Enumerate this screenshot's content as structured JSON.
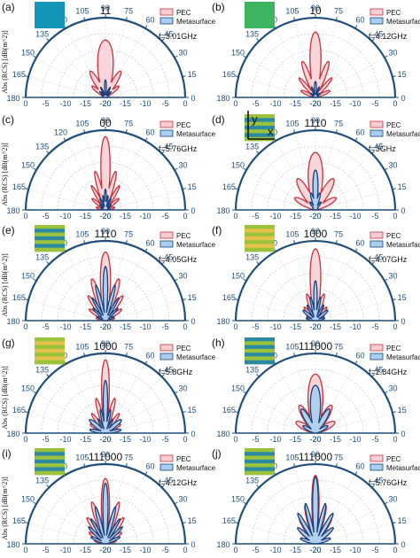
{
  "figure": {
    "y_axis_label": "Abs (RCS) [dB(m^2)]",
    "legend_labels": [
      "PEC",
      "Metasurface"
    ],
    "colors": {
      "axis": "#1f4f7a",
      "pec_stroke": "#c8323c",
      "pec_fill": "#f7cfd3",
      "meta_stroke": "#1d3f7a",
      "meta_fill": "#a8cff0",
      "sq_blue": "#1596b8",
      "sq_green": "#3cb460",
      "stripe_green": "#9bc23c",
      "stripe_yellow": "#e5c34a",
      "stripe_teal": "#2b8aa0"
    }
  },
  "chart_data": [
    {
      "type": "polar",
      "panel": "(a)",
      "code": "11",
      "freq": "f=3.01GHz",
      "swatch": "blue-square",
      "r_ticks": [
        -20,
        -15,
        -10,
        -5,
        0
      ],
      "theta_ticks": [
        0,
        15,
        30,
        45,
        60,
        75,
        90,
        105,
        120,
        135,
        150,
        165,
        180
      ],
      "series": [
        {
          "name": "PEC",
          "lobes": [
            [
              90,
              0.72,
              13
            ],
            [
              60,
              0.38,
              8
            ],
            [
              120,
              0.38,
              8
            ],
            [
              40,
              0.22,
              8
            ],
            [
              140,
              0.22,
              8
            ]
          ]
        },
        {
          "name": "Metasurface",
          "lobes": [
            [
              90,
              0.22,
              5
            ],
            [
              65,
              0.14,
              5
            ],
            [
              115,
              0.14,
              5
            ],
            [
              45,
              0.1,
              6
            ],
            [
              135,
              0.1,
              6
            ]
          ]
        }
      ]
    },
    {
      "type": "polar",
      "panel": "(b)",
      "code": "10",
      "freq": "f=4.12GHz",
      "swatch": "green-square",
      "r_ticks": [
        -20,
        -15,
        -10,
        -5,
        0
      ],
      "theta_ticks": [
        0,
        15,
        30,
        45,
        60,
        75,
        90,
        105,
        120,
        135,
        150,
        165,
        180
      ],
      "series": [
        {
          "name": "PEC",
          "lobes": [
            [
              90,
              0.82,
              8
            ],
            [
              70,
              0.48,
              6
            ],
            [
              110,
              0.48,
              6
            ],
            [
              50,
              0.32,
              6
            ],
            [
              130,
              0.32,
              6
            ],
            [
              25,
              0.2,
              8
            ],
            [
              155,
              0.2,
              8
            ]
          ]
        },
        {
          "name": "Metasurface",
          "lobes": [
            [
              90,
              0.2,
              6
            ],
            [
              70,
              0.14,
              5
            ],
            [
              110,
              0.14,
              5
            ],
            [
              40,
              0.08,
              8
            ],
            [
              140,
              0.08,
              8
            ]
          ]
        }
      ]
    },
    {
      "type": "polar",
      "panel": "(c)",
      "code": "00",
      "freq": "f=5.76GHz",
      "swatch": "",
      "r_ticks": [
        -20,
        -15,
        -10,
        -5,
        0
      ],
      "theta_ticks": [
        0,
        15,
        30,
        45,
        60,
        75,
        90,
        105,
        120,
        135,
        150,
        165,
        180
      ],
      "series": [
        {
          "name": "PEC",
          "lobes": [
            [
              90,
              0.92,
              6
            ],
            [
              75,
              0.5,
              5
            ],
            [
              105,
              0.5,
              5
            ],
            [
              60,
              0.35,
              5
            ],
            [
              120,
              0.35,
              5
            ],
            [
              40,
              0.22,
              7
            ],
            [
              140,
              0.22,
              7
            ],
            [
              15,
              0.12,
              9
            ],
            [
              165,
              0.12,
              9
            ]
          ]
        },
        {
          "name": "Metasurface",
          "lobes": [
            [
              90,
              0.26,
              4
            ],
            [
              80,
              0.18,
              4
            ],
            [
              100,
              0.18,
              4
            ],
            [
              65,
              0.16,
              5
            ],
            [
              115,
              0.16,
              5
            ],
            [
              45,
              0.1,
              7
            ],
            [
              135,
              0.1,
              7
            ],
            [
              15,
              0.06,
              9
            ],
            [
              165,
              0.06,
              9
            ]
          ]
        }
      ]
    },
    {
      "type": "polar",
      "panel": "(d)",
      "code": "1110",
      "freq": "f=3GHz",
      "swatch": "stripes-teal-axes",
      "r_ticks": [
        -20,
        -15,
        -10,
        -5,
        0
      ],
      "theta_ticks": [
        0,
        15,
        30,
        45,
        60,
        75,
        90,
        105,
        120,
        135,
        150,
        165,
        180
      ],
      "series": [
        {
          "name": "PEC",
          "lobes": [
            [
              90,
              0.72,
              12
            ],
            [
              60,
              0.45,
              10
            ],
            [
              120,
              0.45,
              10
            ],
            [
              30,
              0.3,
              10
            ],
            [
              150,
              0.3,
              10
            ]
          ]
        },
        {
          "name": "Metasurface",
          "lobes": [
            [
              90,
              0.5,
              6
            ],
            [
              75,
              0.22,
              6
            ],
            [
              105,
              0.22,
              6
            ],
            [
              55,
              0.12,
              8
            ],
            [
              125,
              0.12,
              8
            ]
          ]
        }
      ]
    },
    {
      "type": "polar",
      "panel": "(e)",
      "code": "1110",
      "freq": "f=4.05GHz",
      "swatch": "stripes-green-teal",
      "r_ticks": [
        -20,
        -15,
        -10,
        -5,
        0
      ],
      "theta_ticks": [
        0,
        15,
        30,
        45,
        60,
        75,
        90,
        105,
        120,
        135,
        150,
        165,
        180
      ],
      "series": [
        {
          "name": "PEC",
          "lobes": [
            [
              90,
              0.86,
              7
            ],
            [
              72,
              0.55,
              6
            ],
            [
              108,
              0.55,
              6
            ],
            [
              55,
              0.38,
              6
            ],
            [
              125,
              0.38,
              6
            ],
            [
              35,
              0.25,
              7
            ],
            [
              145,
              0.25,
              7
            ],
            [
              15,
              0.12,
              8
            ],
            [
              165,
              0.12,
              8
            ]
          ]
        },
        {
          "name": "Metasurface",
          "lobes": [
            [
              90,
              0.68,
              4
            ],
            [
              75,
              0.46,
              4
            ],
            [
              105,
              0.46,
              4
            ],
            [
              60,
              0.33,
              4
            ],
            [
              120,
              0.33,
              4
            ],
            [
              45,
              0.22,
              5
            ],
            [
              135,
              0.22,
              5
            ],
            [
              25,
              0.12,
              7
            ],
            [
              155,
              0.12,
              7
            ]
          ]
        }
      ]
    },
    {
      "type": "polar",
      "panel": "(f)",
      "code": "1000",
      "freq": "f=4.07GHz",
      "swatch": "stripes-green-yellow",
      "r_ticks": [
        -20,
        -15,
        -10,
        -5,
        0
      ],
      "theta_ticks": [
        0,
        15,
        30,
        45,
        60,
        75,
        90,
        105,
        120,
        135,
        150,
        165,
        180
      ],
      "series": [
        {
          "name": "PEC",
          "lobes": [
            [
              90,
              0.9,
              7
            ],
            [
              72,
              0.35,
              6
            ],
            [
              108,
              0.35,
              6
            ],
            [
              50,
              0.22,
              7
            ],
            [
              130,
              0.22,
              7
            ],
            [
              25,
              0.12,
              9
            ],
            [
              155,
              0.12,
              9
            ]
          ]
        },
        {
          "name": "Metasurface",
          "lobes": [
            [
              90,
              0.5,
              4
            ],
            [
              78,
              0.3,
              4
            ],
            [
              102,
              0.3,
              4
            ],
            [
              62,
              0.22,
              5
            ],
            [
              118,
              0.22,
              5
            ],
            [
              40,
              0.2,
              8
            ],
            [
              140,
              0.2,
              8
            ],
            [
              15,
              0.12,
              9
            ],
            [
              165,
              0.12,
              9
            ]
          ]
        }
      ]
    },
    {
      "type": "polar",
      "panel": "(g)",
      "code": "1000",
      "freq": "f=5.8GHz",
      "swatch": "stripes-green-yellow",
      "r_ticks": [
        -20,
        -15,
        -10,
        -5,
        0
      ],
      "theta_ticks": [
        0,
        15,
        30,
        45,
        60,
        75,
        90,
        105,
        120,
        135,
        150,
        165,
        180
      ],
      "series": [
        {
          "name": "PEC",
          "lobes": [
            [
              90,
              0.92,
              5
            ],
            [
              75,
              0.45,
              5
            ],
            [
              105,
              0.45,
              5
            ],
            [
              55,
              0.3,
              6
            ],
            [
              125,
              0.3,
              6
            ],
            [
              30,
              0.22,
              8
            ],
            [
              150,
              0.22,
              8
            ],
            [
              10,
              0.14,
              8
            ],
            [
              170,
              0.14,
              8
            ]
          ]
        },
        {
          "name": "Metasurface",
          "lobes": [
            [
              90,
              0.66,
              4
            ],
            [
              78,
              0.3,
              4
            ],
            [
              102,
              0.3,
              4
            ],
            [
              62,
              0.2,
              5
            ],
            [
              118,
              0.2,
              5
            ],
            [
              40,
              0.26,
              9
            ],
            [
              140,
              0.26,
              9
            ],
            [
              12,
              0.2,
              8
            ],
            [
              168,
              0.2,
              8
            ]
          ]
        }
      ]
    },
    {
      "type": "polar",
      "panel": "(h)",
      "code": "111000",
      "freq": "f=2.84GHz",
      "swatch": "stripes-teal-green",
      "r_ticks": [
        -20,
        -15,
        -10,
        -5,
        0
      ],
      "theta_ticks": [
        0,
        15,
        30,
        45,
        60,
        75,
        90,
        105,
        120,
        135,
        150,
        165,
        180
      ],
      "series": [
        {
          "name": "PEC",
          "lobes": [
            [
              90,
              0.74,
              12
            ],
            [
              60,
              0.4,
              10
            ],
            [
              120,
              0.4,
              10
            ],
            [
              30,
              0.28,
              12
            ],
            [
              150,
              0.28,
              12
            ]
          ]
        },
        {
          "name": "Metasurface",
          "lobes": [
            [
              90,
              0.6,
              10
            ],
            [
              60,
              0.35,
              9
            ],
            [
              120,
              0.35,
              9
            ],
            [
              30,
              0.18,
              10
            ],
            [
              150,
              0.18,
              10
            ]
          ]
        }
      ]
    },
    {
      "type": "polar",
      "panel": "(i)",
      "code": "111000",
      "freq": "f=4.12GHz",
      "swatch": "stripes-green-teal",
      "r_ticks": [
        -20,
        -15,
        -10,
        -5,
        0
      ],
      "theta_ticks": [
        0,
        15,
        30,
        45,
        60,
        75,
        90,
        105,
        120,
        135,
        150,
        165,
        180
      ],
      "series": [
        {
          "name": "PEC",
          "lobes": [
            [
              90,
              0.82,
              6
            ],
            [
              72,
              0.55,
              5
            ],
            [
              108,
              0.55,
              5
            ],
            [
              55,
              0.4,
              6
            ],
            [
              125,
              0.4,
              6
            ],
            [
              35,
              0.25,
              7
            ],
            [
              145,
              0.25,
              7
            ],
            [
              15,
              0.14,
              8
            ],
            [
              165,
              0.14,
              8
            ]
          ]
        },
        {
          "name": "Metasurface",
          "lobes": [
            [
              90,
              0.76,
              4
            ],
            [
              75,
              0.48,
              4
            ],
            [
              105,
              0.48,
              4
            ],
            [
              60,
              0.36,
              4
            ],
            [
              120,
              0.36,
              4
            ],
            [
              45,
              0.3,
              5
            ],
            [
              135,
              0.3,
              5
            ],
            [
              25,
              0.2,
              7
            ],
            [
              155,
              0.2,
              7
            ]
          ]
        }
      ]
    },
    {
      "type": "polar",
      "panel": "(j)",
      "code": "111000",
      "freq": "f=5.76GHz",
      "swatch": "stripes-green-teal",
      "r_ticks": [
        -20,
        -15,
        -10,
        -5,
        0
      ],
      "theta_ticks": [
        0,
        15,
        30,
        45,
        60,
        75,
        90,
        105,
        120,
        135,
        150,
        165,
        180
      ],
      "series": [
        {
          "name": "PEC",
          "lobes": [
            [
              90,
              0.86,
              5
            ],
            [
              75,
              0.5,
              5
            ],
            [
              105,
              0.5,
              5
            ],
            [
              58,
              0.38,
              6
            ],
            [
              122,
              0.38,
              6
            ],
            [
              40,
              0.25,
              7
            ],
            [
              140,
              0.25,
              7
            ],
            [
              20,
              0.15,
              8
            ],
            [
              160,
              0.15,
              8
            ]
          ]
        },
        {
          "name": "Metasurface",
          "lobes": [
            [
              90,
              0.84,
              4
            ],
            [
              76,
              0.52,
              4
            ],
            [
              104,
              0.52,
              4
            ],
            [
              60,
              0.44,
              5
            ],
            [
              120,
              0.44,
              5
            ],
            [
              42,
              0.3,
              7
            ],
            [
              138,
              0.3,
              7
            ],
            [
              20,
              0.2,
              8
            ],
            [
              160,
              0.2,
              8
            ]
          ]
        }
      ]
    }
  ]
}
